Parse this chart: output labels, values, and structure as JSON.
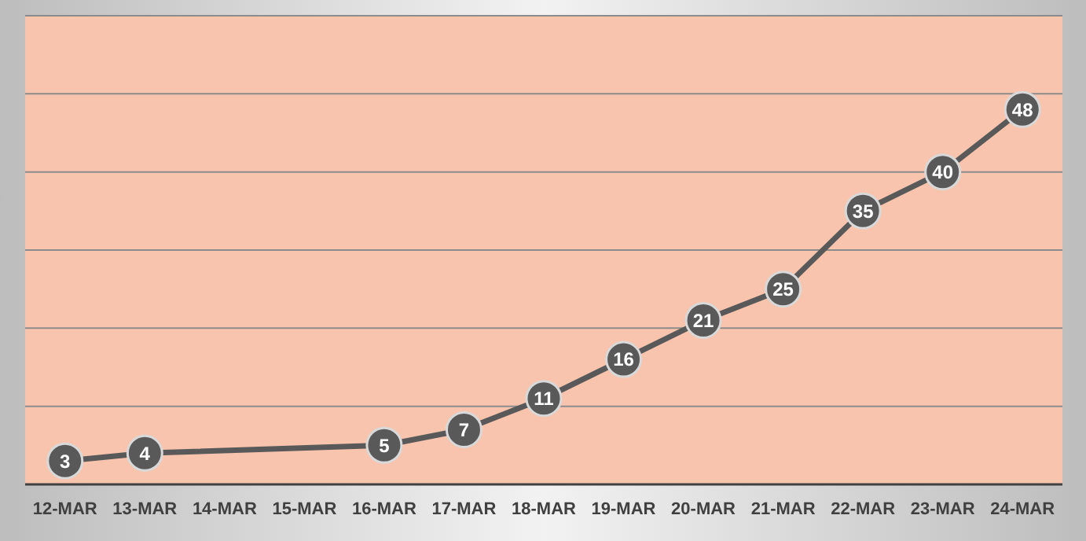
{
  "chart_data": {
    "type": "line",
    "categories": [
      "12-MAR",
      "13-MAR",
      "14-MAR",
      "15-MAR",
      "16-MAR",
      "17-MAR",
      "18-MAR",
      "19-MAR",
      "20-MAR",
      "21-MAR",
      "22-MAR",
      "23-MAR",
      "24-MAR"
    ],
    "series": [
      {
        "color": "#595959",
        "values": [
          3,
          4,
          null,
          null,
          5,
          7,
          11,
          16,
          21,
          25,
          35,
          40,
          48
        ]
      }
    ],
    "ylim": [
      0,
      60
    ],
    "yticks": [
      {
        "value": 0,
        "label": null
      },
      {
        "value": 10,
        "label": null
      },
      {
        "value": 20,
        "label": null
      },
      {
        "value": 30,
        "label": null
      },
      {
        "value": 40,
        "label": null
      },
      {
        "value": 50,
        "label": null
      },
      {
        "value": 60,
        "label": null
      }
    ],
    "tick_labels": "x",
    "grid": "y",
    "marker": "circle",
    "line_style": "solid",
    "data_labels": true
  }
}
